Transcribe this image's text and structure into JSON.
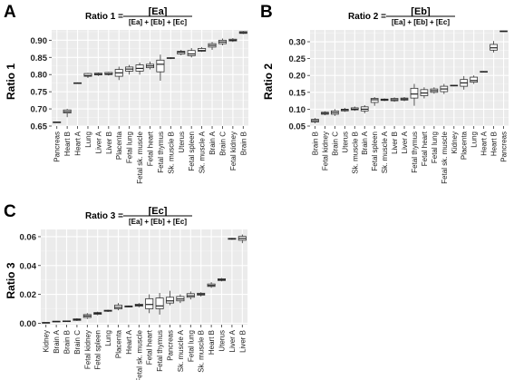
{
  "figure": {
    "panels": [
      "A",
      "B",
      "C"
    ]
  },
  "chart_data": [
    {
      "panel_label": "A",
      "type": "boxplot",
      "title": "Ratio 1 =",
      "title_numerator": "[Ea]",
      "title_denominator": "[Ea] + [Eb] + [Ec]",
      "xlabel": "",
      "ylabel": "Ratio 1",
      "ylim": [
        0.65,
        0.93
      ],
      "yticks": [
        "0.65",
        "0.70",
        "0.75",
        "0.80",
        "0.85",
        "0.90"
      ],
      "ytick_values": [
        0.65,
        0.7,
        0.75,
        0.8,
        0.85,
        0.9
      ],
      "grid": true,
      "boxes": [
        {
          "category": "Pancreas",
          "min": 0.659,
          "q1": 0.66,
          "median": 0.661,
          "q3": 0.662,
          "max": 0.663
        },
        {
          "category": "Heart B",
          "min": 0.676,
          "q1": 0.688,
          "median": 0.692,
          "q3": 0.697,
          "max": 0.7
        },
        {
          "category": "Heart A",
          "min": 0.773,
          "q1": 0.774,
          "median": 0.775,
          "q3": 0.776,
          "max": 0.777
        },
        {
          "category": "Lung",
          "min": 0.79,
          "q1": 0.795,
          "median": 0.797,
          "q3": 0.803,
          "max": 0.805
        },
        {
          "category": "Liver A",
          "min": 0.796,
          "q1": 0.799,
          "median": 0.801,
          "q3": 0.804,
          "max": 0.806
        },
        {
          "category": "Liver B",
          "min": 0.797,
          "q1": 0.8,
          "median": 0.802,
          "q3": 0.806,
          "max": 0.808
        },
        {
          "category": "Placenta",
          "min": 0.784,
          "q1": 0.795,
          "median": 0.805,
          "q3": 0.815,
          "max": 0.823
        },
        {
          "category": "Fetal lung",
          "min": 0.8,
          "q1": 0.81,
          "median": 0.816,
          "q3": 0.822,
          "max": 0.828
        },
        {
          "category": "Fetal sk. muscle",
          "min": 0.8,
          "q1": 0.81,
          "median": 0.818,
          "q3": 0.828,
          "max": 0.835
        },
        {
          "category": "Fetal heart",
          "min": 0.815,
          "q1": 0.82,
          "median": 0.825,
          "q3": 0.83,
          "max": 0.838
        },
        {
          "category": "Fetal thymus",
          "min": 0.782,
          "q1": 0.808,
          "median": 0.83,
          "q3": 0.842,
          "max": 0.858
        },
        {
          "category": "Sk. muscle B",
          "min": 0.845,
          "q1": 0.847,
          "median": 0.848,
          "q3": 0.849,
          "max": 0.85
        },
        {
          "category": "Uterus",
          "min": 0.856,
          "q1": 0.86,
          "median": 0.865,
          "q3": 0.868,
          "max": 0.872
        },
        {
          "category": "Fetal spleen",
          "min": 0.85,
          "q1": 0.855,
          "median": 0.86,
          "q3": 0.87,
          "max": 0.877
        },
        {
          "category": "Sk. muscle A",
          "min": 0.866,
          "q1": 0.868,
          "median": 0.87,
          "q3": 0.876,
          "max": 0.88
        },
        {
          "category": "Brain A",
          "min": 0.872,
          "q1": 0.88,
          "median": 0.885,
          "q3": 0.89,
          "max": 0.895
        },
        {
          "category": "Brain C",
          "min": 0.885,
          "q1": 0.89,
          "median": 0.895,
          "q3": 0.9,
          "max": 0.905
        },
        {
          "category": "Fetal kidney",
          "min": 0.895,
          "q1": 0.898,
          "median": 0.9,
          "q3": 0.903,
          "max": 0.906
        },
        {
          "category": "Brain B",
          "min": 0.918,
          "q1": 0.92,
          "median": 0.922,
          "q3": 0.925,
          "max": 0.927
        }
      ]
    },
    {
      "panel_label": "B",
      "type": "boxplot",
      "title": "Ratio 2 =",
      "title_numerator": "[Eb]",
      "title_denominator": "[Ea] + [Eb] + [Ec]",
      "xlabel": "",
      "ylabel": "Ratio 2",
      "ylim": [
        0.05,
        0.335
      ],
      "yticks": [
        "0.05",
        "0.10",
        "0.15",
        "0.20",
        "0.25",
        "0.30"
      ],
      "ytick_values": [
        0.05,
        0.1,
        0.15,
        0.2,
        0.25,
        0.3
      ],
      "grid": true,
      "boxes": [
        {
          "category": "Brain B",
          "min": 0.058,
          "q1": 0.062,
          "median": 0.066,
          "q3": 0.07,
          "max": 0.074
        },
        {
          "category": "Fetal kidney",
          "min": 0.082,
          "q1": 0.085,
          "median": 0.088,
          "q3": 0.091,
          "max": 0.094
        },
        {
          "category": "Brain C",
          "min": 0.08,
          "q1": 0.085,
          "median": 0.09,
          "q3": 0.095,
          "max": 0.1
        },
        {
          "category": "Uterus",
          "min": 0.092,
          "q1": 0.095,
          "median": 0.098,
          "q3": 0.1,
          "max": 0.104
        },
        {
          "category": "Sk. muscle B",
          "min": 0.095,
          "q1": 0.098,
          "median": 0.1,
          "q3": 0.104,
          "max": 0.108
        },
        {
          "category": "Brain A",
          "min": 0.088,
          "q1": 0.095,
          "median": 0.1,
          "q3": 0.107,
          "max": 0.112
        },
        {
          "category": "Fetal spleen",
          "min": 0.11,
          "q1": 0.12,
          "median": 0.128,
          "q3": 0.132,
          "max": 0.136
        },
        {
          "category": "Sk. muscle A",
          "min": 0.124,
          "q1": 0.126,
          "median": 0.128,
          "q3": 0.13,
          "max": 0.132
        },
        {
          "category": "Liver B",
          "min": 0.122,
          "q1": 0.125,
          "median": 0.128,
          "q3": 0.132,
          "max": 0.135
        },
        {
          "category": "Liver A",
          "min": 0.124,
          "q1": 0.127,
          "median": 0.13,
          "q3": 0.133,
          "max": 0.136
        },
        {
          "category": "Fetal thymus",
          "min": 0.11,
          "q1": 0.133,
          "median": 0.145,
          "q3": 0.162,
          "max": 0.175
        },
        {
          "category": "Fetal heart",
          "min": 0.132,
          "q1": 0.14,
          "median": 0.148,
          "q3": 0.158,
          "max": 0.165
        },
        {
          "category": "Fetal lung",
          "min": 0.146,
          "q1": 0.15,
          "median": 0.155,
          "q3": 0.16,
          "max": 0.165
        },
        {
          "category": "Fetal sk. muscle",
          "min": 0.145,
          "q1": 0.152,
          "median": 0.16,
          "q3": 0.168,
          "max": 0.175
        },
        {
          "category": "Kidney",
          "min": 0.168,
          "q1": 0.169,
          "median": 0.17,
          "q3": 0.171,
          "max": 0.172
        },
        {
          "category": "Placenta",
          "min": 0.158,
          "q1": 0.168,
          "median": 0.178,
          "q3": 0.188,
          "max": 0.198
        },
        {
          "category": "Lung",
          "min": 0.175,
          "q1": 0.18,
          "median": 0.185,
          "q3": 0.195,
          "max": 0.2
        },
        {
          "category": "Heart A",
          "min": 0.209,
          "q1": 0.21,
          "median": 0.211,
          "q3": 0.212,
          "max": 0.213
        },
        {
          "category": "Heart B",
          "min": 0.268,
          "q1": 0.275,
          "median": 0.282,
          "q3": 0.292,
          "max": 0.302
        },
        {
          "category": "Pancreas",
          "min": 0.329,
          "q1": 0.33,
          "median": 0.331,
          "q3": 0.332,
          "max": 0.333
        }
      ]
    },
    {
      "panel_label": "C",
      "type": "boxplot",
      "title": "Ratio 3 =",
      "title_numerator": "[Ec]",
      "title_denominator": "[Ea] + [Eb] + [Ec]",
      "xlabel": "",
      "ylabel": "Ratio 3",
      "ylim": [
        -0.001,
        0.065
      ],
      "yticks": [
        "0.00",
        "0.02",
        "0.04",
        "0.06"
      ],
      "ytick_values": [
        0.0,
        0.02,
        0.04,
        0.06
      ],
      "grid": true,
      "boxes": [
        {
          "category": "Kidney",
          "min": 0.0002,
          "q1": 0.0003,
          "median": 0.0004,
          "q3": 0.0005,
          "max": 0.0006
        },
        {
          "category": "Brain A",
          "min": 0.0008,
          "q1": 0.001,
          "median": 0.0012,
          "q3": 0.0014,
          "max": 0.0016
        },
        {
          "category": "Brain B",
          "min": 0.001,
          "q1": 0.0012,
          "median": 0.0014,
          "q3": 0.0016,
          "max": 0.0018
        },
        {
          "category": "Brain C",
          "min": 0.0015,
          "q1": 0.002,
          "median": 0.0025,
          "q3": 0.003,
          "max": 0.0035
        },
        {
          "category": "Fetal kidney",
          "min": 0.003,
          "q1": 0.004,
          "median": 0.005,
          "q3": 0.006,
          "max": 0.007
        },
        {
          "category": "Fetal spleen",
          "min": 0.0055,
          "q1": 0.0062,
          "median": 0.0068,
          "q3": 0.0074,
          "max": 0.008
        },
        {
          "category": "Lung",
          "min": 0.0078,
          "q1": 0.0083,
          "median": 0.0086,
          "q3": 0.009,
          "max": 0.0094
        },
        {
          "category": "Placenta",
          "min": 0.009,
          "q1": 0.01,
          "median": 0.011,
          "q3": 0.0125,
          "max": 0.014
        },
        {
          "category": "Heart A",
          "min": 0.011,
          "q1": 0.0113,
          "median": 0.0116,
          "q3": 0.012,
          "max": 0.0123
        },
        {
          "category": "Fetal sk. muscle",
          "min": 0.011,
          "q1": 0.0118,
          "median": 0.0125,
          "q3": 0.0132,
          "max": 0.014
        },
        {
          "category": "Fetal heart",
          "min": 0.007,
          "q1": 0.01,
          "median": 0.013,
          "q3": 0.017,
          "max": 0.02
        },
        {
          "category": "Fetal thymus",
          "min": 0.006,
          "q1": 0.01,
          "median": 0.012,
          "q3": 0.0175,
          "max": 0.021
        },
        {
          "category": "Pancreas",
          "min": 0.0125,
          "q1": 0.014,
          "median": 0.0155,
          "q3": 0.018,
          "max": 0.0225
        },
        {
          "category": "Sk. muscle A",
          "min": 0.014,
          "q1": 0.0155,
          "median": 0.0168,
          "q3": 0.0185,
          "max": 0.02
        },
        {
          "category": "Fetal lung",
          "min": 0.0165,
          "q1": 0.018,
          "median": 0.019,
          "q3": 0.0205,
          "max": 0.022
        },
        {
          "category": "Sk. muscle B",
          "min": 0.0185,
          "q1": 0.0195,
          "median": 0.0202,
          "q3": 0.0208,
          "max": 0.0215
        },
        {
          "category": "Heart B",
          "min": 0.0245,
          "q1": 0.0255,
          "median": 0.0262,
          "q3": 0.0272,
          "max": 0.0285
        },
        {
          "category": "Uterus",
          "min": 0.029,
          "q1": 0.0296,
          "median": 0.0302,
          "q3": 0.0308,
          "max": 0.0314
        },
        {
          "category": "Liver A",
          "min": 0.0578,
          "q1": 0.0582,
          "median": 0.0585,
          "q3": 0.0588,
          "max": 0.0592
        },
        {
          "category": "Liver B",
          "min": 0.0555,
          "q1": 0.0575,
          "median": 0.0588,
          "q3": 0.0602,
          "max": 0.0615
        }
      ]
    }
  ]
}
